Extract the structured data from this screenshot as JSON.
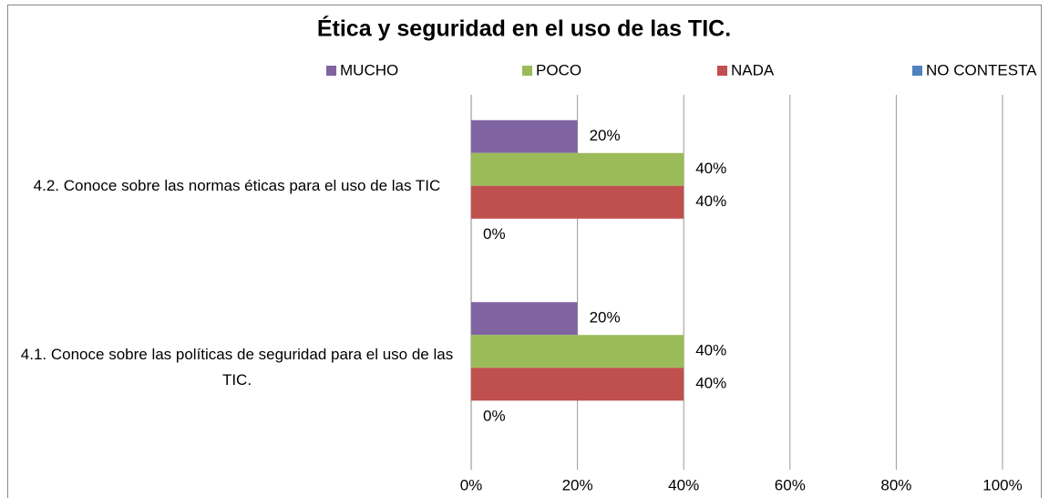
{
  "chart_data": {
    "type": "hbar",
    "title": "Ética y seguridad en el uso de las TIC.",
    "categories": [
      "4.1. Conoce sobre las políticas de seguridad para el uso de las TIC.",
      "4.2. Conoce sobre las normas éticas para el uso de las TIC"
    ],
    "series": [
      {
        "name": "MUCHO",
        "color": "#8064a2",
        "values": [
          20,
          20
        ],
        "value_labels": [
          "20%",
          "20%"
        ]
      },
      {
        "name": "POCO",
        "color": "#9bbb59",
        "values": [
          40,
          40
        ],
        "value_labels": [
          "40%",
          "40%"
        ]
      },
      {
        "name": "NADA",
        "color": "#c0504d",
        "values": [
          40,
          40
        ],
        "value_labels": [
          "40%",
          "40%"
        ]
      },
      {
        "name": "NO CONTESTA",
        "color": "#4f81bd",
        "values": [
          0,
          0
        ],
        "value_labels": [
          "0%",
          "0%"
        ]
      }
    ],
    "xlim": [
      0,
      100
    ],
    "xticks": [
      {
        "value": 0,
        "label": "0%"
      },
      {
        "value": 20,
        "label": "20%"
      },
      {
        "value": 40,
        "label": "40%"
      },
      {
        "value": 60,
        "label": "60%"
      },
      {
        "value": 80,
        "label": "80%"
      },
      {
        "value": 100,
        "label": "100%"
      }
    ],
    "grid": true,
    "legend": "top"
  }
}
